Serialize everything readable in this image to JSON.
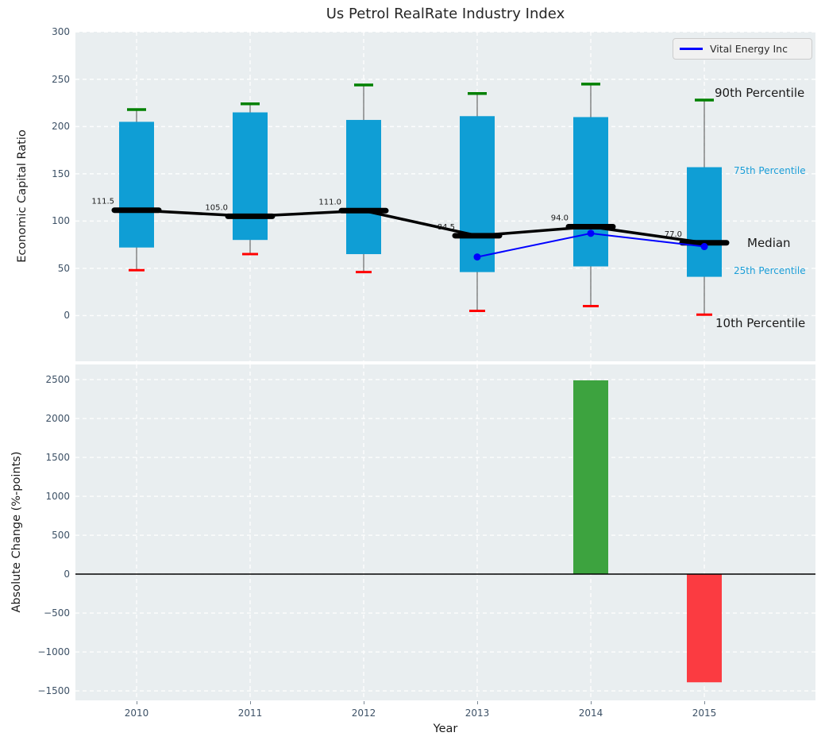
{
  "title": "Us Petrol RealRate Industry Index",
  "legend": {
    "label": "Vital Energy Inc"
  },
  "colors": {
    "box": "#0f9ed5",
    "p90_cap": "#008000",
    "p10_cap": "#ff0000",
    "whisker": "#4d4d4d",
    "median": "#000000",
    "company_line": "#0000ff",
    "bar_positive": "#3da33f",
    "bar_negative": "#fb3b41",
    "axes_bg": "#e9eef0",
    "grid": "#ffffff",
    "tick_label": "#3d5166",
    "annotation_cyan": "#1b9ed8",
    "zero_line": "#000000"
  },
  "chart_data": [
    {
      "type": "box",
      "title": "Us Petrol RealRate Industry Index",
      "ylabel": "Economic Capital Ratio",
      "categories": [
        2010,
        2011,
        2012,
        2013,
        2014,
        2015
      ],
      "series": [
        {
          "name": "10th Percentile",
          "values": [
            48,
            65,
            46,
            5,
            10,
            1
          ]
        },
        {
          "name": "25th Percentile",
          "values": [
            72,
            80,
            65,
            46,
            52,
            41
          ]
        },
        {
          "name": "Median",
          "values": [
            111.5,
            105.0,
            111.0,
            84.5,
            94.0,
            77.0
          ]
        },
        {
          "name": "75th Percentile",
          "values": [
            205,
            215,
            207,
            211,
            210,
            157
          ]
        },
        {
          "name": "90th Percentile",
          "values": [
            218,
            224,
            244,
            235,
            245,
            228
          ]
        },
        {
          "name": "Vital Energy Inc",
          "values": [
            null,
            null,
            null,
            62,
            87,
            73
          ]
        }
      ],
      "median_labels": [
        "111.5",
        "105.0",
        "111.0",
        "84.5",
        "94.0",
        "77.0"
      ],
      "yticks": [
        0,
        50,
        100,
        150,
        200,
        250,
        300
      ],
      "ylim": [
        -48.4,
        300.3
      ],
      "grid": true,
      "legend_position": "upper right",
      "right_labels": [
        "90th Percentile",
        "75th Percentile",
        "Median",
        "25th Percentile",
        "10th Percentile"
      ]
    },
    {
      "type": "bar",
      "ylabel": "Absolute Change (%-points)",
      "xlabel": "Year",
      "categories": [
        2010,
        2011,
        2012,
        2013,
        2014,
        2015
      ],
      "values": [
        null,
        null,
        null,
        null,
        2490,
        -1390
      ],
      "yticks": [
        -1500,
        -1000,
        -500,
        0,
        500,
        1000,
        1500,
        2000,
        2500
      ],
      "ylim": [
        -1622,
        2694
      ],
      "grid": true
    }
  ]
}
